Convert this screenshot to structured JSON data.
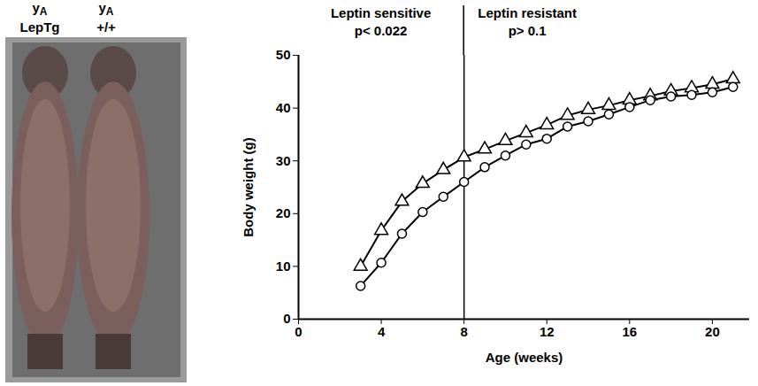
{
  "photo_labels": [
    {
      "letter": "y",
      "subscript": "A",
      "strain": "LepTg"
    },
    {
      "letter": "y",
      "subscript": "A",
      "strain": "+/+"
    }
  ],
  "chart_data": {
    "type": "line",
    "xlabel": "Age (weeks)",
    "ylabel": "Body weight (g)",
    "x": [
      3,
      4,
      5,
      6,
      7,
      8,
      9,
      10,
      11,
      12,
      13,
      14,
      15,
      16,
      17,
      18,
      19,
      20,
      21
    ],
    "series": [
      {
        "color": "#000000",
        "marker": "triangle",
        "line_style": "solid",
        "values": [
          10,
          16.8,
          22.3,
          25.7,
          28.3,
          30.7,
          32.2,
          33.8,
          35.3,
          36.8,
          38.6,
          39.7,
          40.5,
          41.5,
          42.3,
          43.2,
          43.8,
          44.5,
          45.5
        ]
      },
      {
        "color": "#000000",
        "marker": "circle",
        "line_style": "solid",
        "values": [
          6.3,
          10.7,
          16.2,
          20.3,
          23.2,
          26.0,
          28.8,
          31.0,
          33.1,
          34.2,
          36.5,
          37.5,
          38.8,
          40.2,
          41.5,
          42.2,
          42.5,
          43.0,
          44.0
        ]
      }
    ],
    "xlim": [
      0,
      21.8
    ],
    "xticks": [
      0,
      4,
      8,
      12,
      16,
      20
    ],
    "ylim": [
      0,
      50
    ],
    "yticks": [
      0,
      10,
      20,
      30,
      40,
      50
    ],
    "grid": false,
    "divider_x": 8,
    "annotations": [
      {
        "lines": [
          "Leptin sensitive",
          "p< 0.022"
        ]
      },
      {
        "lines": [
          "Leptin resistant",
          "p> 0.1"
        ]
      }
    ]
  }
}
